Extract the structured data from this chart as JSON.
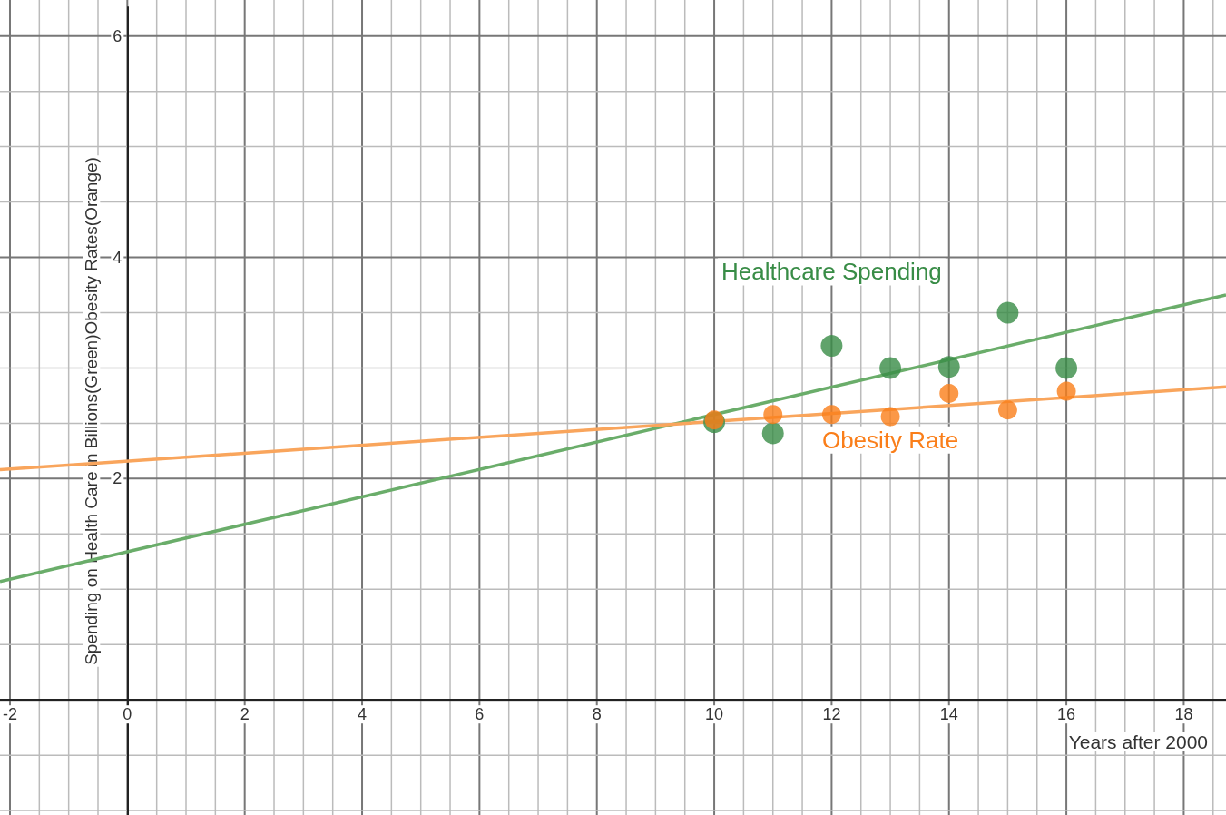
{
  "chart_data": {
    "type": "scatter",
    "xlabel": "Years after 2000",
    "ylabel": "Spending on Health Care in Billions(Green)Obesity Rates(Orange)",
    "xlim": [
      -2.17,
      18.72
    ],
    "ylim": [
      -1.04,
      6.26
    ],
    "xticks": [
      -2,
      0,
      2,
      4,
      6,
      8,
      10,
      12,
      14,
      16,
      18
    ],
    "yticks": [
      2,
      4,
      6
    ],
    "grid": true,
    "legend": false,
    "series": [
      {
        "name": "Healthcare Spending",
        "color": "#388c46",
        "marker": "circle",
        "x": [
          10,
          11,
          12,
          13,
          14,
          15,
          16
        ],
        "values": [
          2.51,
          2.41,
          3.2,
          3.0,
          3.01,
          3.5,
          3.0
        ]
      },
      {
        "name": "Obesity Rate",
        "color": "#fa7e19",
        "marker": "circle",
        "x": [
          10,
          11,
          12,
          13,
          14,
          15,
          16
        ],
        "values": [
          2.53,
          2.58,
          2.58,
          2.56,
          2.77,
          2.62,
          2.79
        ]
      },
      {
        "type": "line",
        "color": "#6aad6a",
        "x": [
          -2.17,
          18.72
        ],
        "values": [
          1.07,
          3.66
        ]
      },
      {
        "type": "line",
        "color": "#f9a55c",
        "x": [
          -2.17,
          18.72
        ],
        "values": [
          2.08,
          2.83
        ]
      }
    ]
  }
}
